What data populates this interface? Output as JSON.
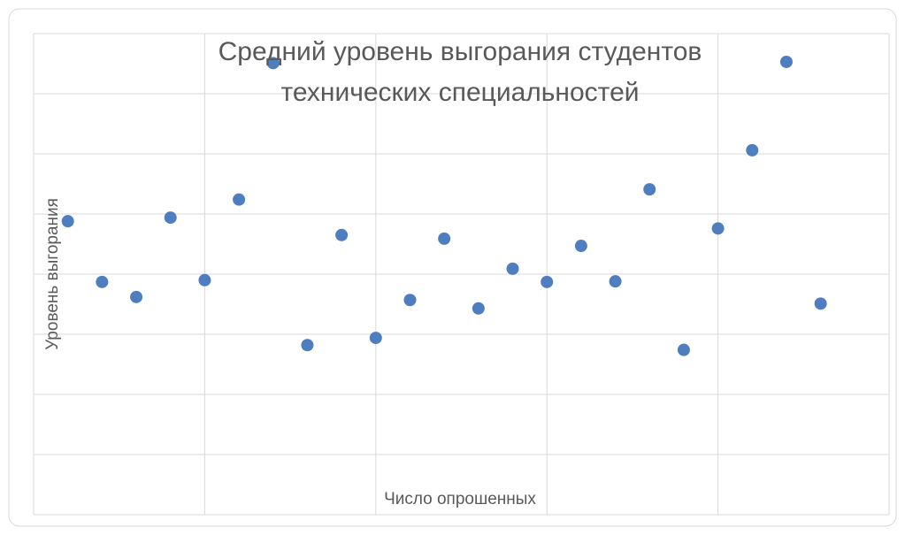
{
  "chart_data": {
    "type": "scatter",
    "title": "Средний уровень выгорания студентов технических специальностей",
    "x_label": "Число опрошенных",
    "y_label": "Уровень выгорания",
    "color": "#4e7ec0",
    "grid": true,
    "xlim": [
      0,
      25
    ],
    "xticks": [
      0,
      5,
      10,
      15,
      20,
      25
    ],
    "ylim": [
      0,
      8
    ],
    "yticks": [
      0,
      1,
      2,
      3,
      4,
      5,
      6,
      7,
      8
    ],
    "x": [
      1,
      2,
      3,
      4,
      5,
      6,
      7,
      8,
      9,
      10,
      11,
      12,
      13,
      14,
      15,
      16,
      17,
      18,
      19,
      20,
      21,
      22,
      23
    ],
    "values": [
      4.88,
      3.87,
      3.62,
      4.94,
      3.9,
      5.24,
      7.51,
      2.82,
      4.65,
      2.94,
      3.57,
      4.59,
      3.43,
      4.09,
      3.87,
      4.47,
      3.88,
      5.41,
      2.74,
      4.76,
      6.06,
      7.53,
      3.51
    ]
  }
}
